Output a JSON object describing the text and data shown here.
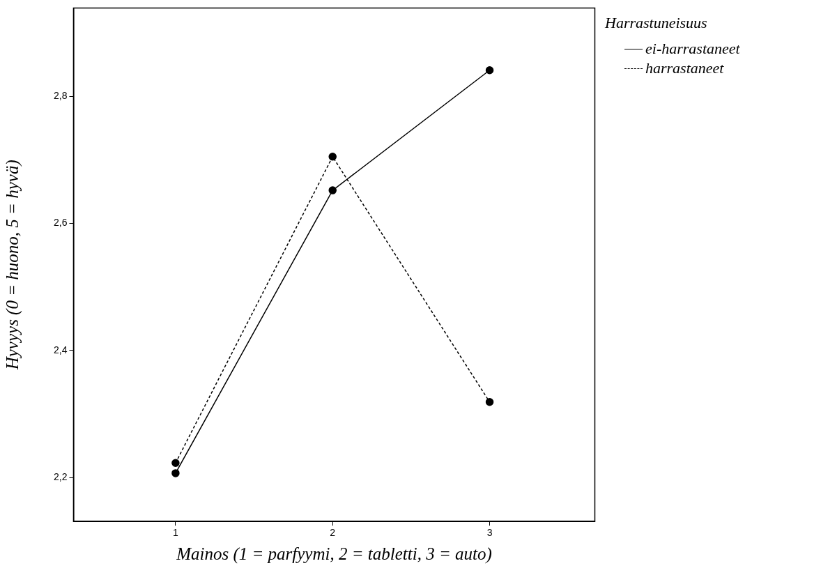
{
  "chart_data": {
    "type": "line",
    "xlabel": "Mainos (1 = parfyymi, 2 = tabletti, 3 = auto)",
    "ylabel": "Hyvyys (0 = huono, 5 = hyvä)",
    "legend_title": "Harrastuneisuus",
    "legend": "top right",
    "marker": "circle",
    "grid": false,
    "x": [
      1,
      2,
      3
    ],
    "xlim": [
      0.35,
      3.67
    ],
    "xticks": [
      1,
      2,
      3
    ],
    "ylim": [
      2.131,
      2.939
    ],
    "yticks": [
      {
        "value": 2.2,
        "label": "2,2"
      },
      {
        "value": 2.4,
        "label": "2,4"
      },
      {
        "value": 2.6,
        "label": "2,6"
      },
      {
        "value": 2.8,
        "label": "2,8"
      }
    ],
    "series": [
      {
        "name": "ei-harrastaneet",
        "color": "#000000",
        "line_style": "solid",
        "values": [
          2.207,
          2.652,
          2.841
        ]
      },
      {
        "name": "harrastaneet",
        "color": "#000000",
        "line_style": "dashed",
        "values": [
          2.223,
          2.705,
          2.319
        ]
      }
    ]
  }
}
